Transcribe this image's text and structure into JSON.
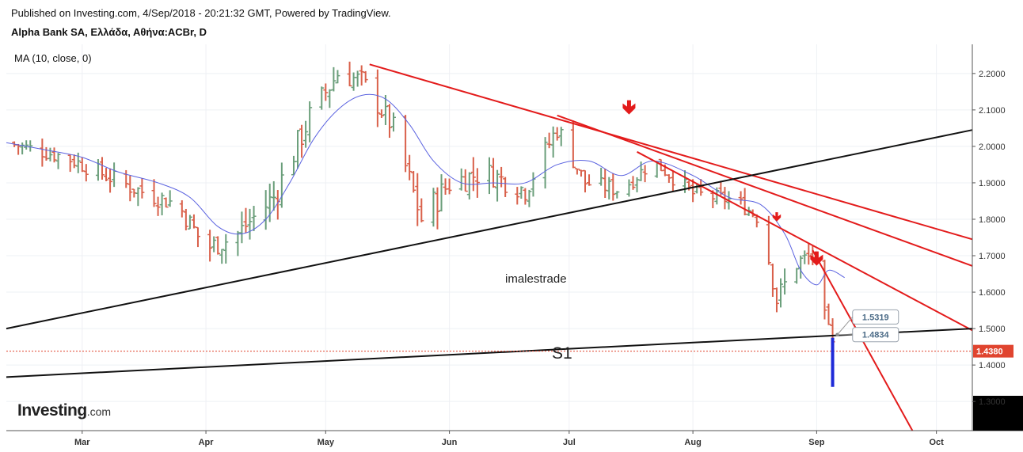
{
  "header": {
    "published": "Published on Investing.com, 4/Sep/2018 - 20:21:32 GMT, Powered by TradingView.",
    "symbol": "Alpha Bank SA, Ελλάδα, Αθήνα:ACBr, D"
  },
  "indicator_label": "MA (10, close, 0)",
  "logo": {
    "main": "Investing",
    "suffix": ".com"
  },
  "colors": {
    "up_bar": "#6a9e7a",
    "down_bar": "#d9604a",
    "ma_line": "#5b63e0",
    "trendline_red": "#e31b1b",
    "trendline_black": "#111111",
    "last_price": "#e0442f",
    "volume_marker": "#1e2ad8"
  },
  "chart_data": {
    "type": "ohlc",
    "title": "Alpha Bank SA, Ελλάδα, Αθήνα:ACBr, D",
    "y_axis": {
      "ticks": [
        "1.3000",
        "1.4000",
        "1.5000",
        "1.6000",
        "1.7000",
        "1.8000",
        "1.9000",
        "2.0000",
        "2.1000",
        "2.2000"
      ],
      "range": [
        1.22,
        2.28
      ],
      "position": "right"
    },
    "x_axis": {
      "labels": [
        "Mar",
        "Apr",
        "May",
        "Jun",
        "Jul",
        "Aug",
        "Sep",
        "Oct"
      ],
      "start": "2018-02-10",
      "end": "2018-10-10"
    },
    "last_price": {
      "value": 1.438,
      "label": "1.4380"
    },
    "price_labels": [
      {
        "value": 1.5319,
        "label": "1.5319"
      },
      {
        "value": 1.4834,
        "label": "1.4834"
      }
    ],
    "annotations": {
      "watermark": "imalestrade",
      "support_label": "S1"
    },
    "moving_average": {
      "name": "MA (10, close, 0)",
      "points": [
        [
          "2018-02-10",
          2.01
        ],
        [
          "2018-02-20",
          1.99
        ],
        [
          "2018-03-01",
          1.97
        ],
        [
          "2018-03-10",
          1.93
        ],
        [
          "2018-03-20",
          1.9
        ],
        [
          "2018-03-28",
          1.86
        ],
        [
          "2018-04-04",
          1.78
        ],
        [
          "2018-04-10",
          1.76
        ],
        [
          "2018-04-16",
          1.8
        ],
        [
          "2018-04-22",
          1.9
        ],
        [
          "2018-04-28",
          2.02
        ],
        [
          "2018-05-04",
          2.1
        ],
        [
          "2018-05-10",
          2.14
        ],
        [
          "2018-05-16",
          2.13
        ],
        [
          "2018-05-22",
          2.06
        ],
        [
          "2018-05-28",
          1.96
        ],
        [
          "2018-06-04",
          1.9
        ],
        [
          "2018-06-12",
          1.9
        ],
        [
          "2018-06-20",
          1.9
        ],
        [
          "2018-06-28",
          1.95
        ],
        [
          "2018-07-06",
          1.96
        ],
        [
          "2018-07-14",
          1.92
        ],
        [
          "2018-07-22",
          1.96
        ],
        [
          "2018-08-01",
          1.92
        ],
        [
          "2018-08-10",
          1.86
        ],
        [
          "2018-08-18",
          1.84
        ],
        [
          "2018-08-24",
          1.76
        ],
        [
          "2018-08-28",
          1.66
        ],
        [
          "2018-09-01",
          1.62
        ],
        [
          "2018-09-04",
          1.66
        ],
        [
          "2018-09-08",
          1.64
        ]
      ]
    },
    "ohlc_segments": [
      {
        "date": "2018-02-10",
        "close": 2.01,
        "noise": 0.025
      },
      {
        "date": "2018-02-25",
        "close": 1.97,
        "noise": 0.03
      },
      {
        "date": "2018-03-05",
        "close": 1.93,
        "noise": 0.03
      },
      {
        "date": "2018-03-15",
        "close": 1.88,
        "noise": 0.035
      },
      {
        "date": "2018-03-25",
        "close": 1.84,
        "noise": 0.035
      },
      {
        "date": "2018-04-01",
        "close": 1.72,
        "noise": 0.04
      },
      {
        "date": "2018-04-08",
        "close": 1.75,
        "noise": 0.04
      },
      {
        "date": "2018-04-18",
        "close": 1.86,
        "noise": 0.05
      },
      {
        "date": "2018-04-27",
        "close": 2.08,
        "noise": 0.05
      },
      {
        "date": "2018-05-04",
        "close": 2.2,
        "noise": 0.04
      },
      {
        "date": "2018-05-10",
        "close": 2.18,
        "noise": 0.04
      },
      {
        "date": "2018-05-18",
        "close": 2.05,
        "noise": 0.04
      },
      {
        "date": "2018-05-25",
        "close": 1.8,
        "noise": 0.05
      },
      {
        "date": "2018-06-01",
        "close": 1.9,
        "noise": 0.05
      },
      {
        "date": "2018-06-10",
        "close": 1.93,
        "noise": 0.04
      },
      {
        "date": "2018-06-20",
        "close": 1.88,
        "noise": 0.04
      },
      {
        "date": "2018-06-28",
        "close": 2.05,
        "noise": 0.04
      },
      {
        "date": "2018-07-05",
        "close": 1.9,
        "noise": 0.03
      },
      {
        "date": "2018-07-14",
        "close": 1.88,
        "noise": 0.03
      },
      {
        "date": "2018-07-22",
        "close": 1.96,
        "noise": 0.025
      },
      {
        "date": "2018-08-01",
        "close": 1.87,
        "noise": 0.03
      },
      {
        "date": "2018-08-12",
        "close": 1.85,
        "noise": 0.025
      },
      {
        "date": "2018-08-18",
        "close": 1.8,
        "noise": 0.03
      },
      {
        "date": "2018-08-22",
        "close": 1.58,
        "noise": 0.04
      },
      {
        "date": "2018-08-27",
        "close": 1.68,
        "noise": 0.04
      },
      {
        "date": "2018-08-31",
        "close": 1.7,
        "noise": 0.03
      },
      {
        "date": "2018-09-03",
        "close": 1.52,
        "noise": 0.04
      },
      {
        "date": "2018-09-05",
        "close": 1.45,
        "noise": 0.03
      }
    ],
    "trendlines": [
      {
        "color": "red",
        "from": [
          "2018-05-12",
          2.225
        ],
        "to": [
          "2018-10-10",
          1.745
        ]
      },
      {
        "color": "red",
        "from": [
          "2018-06-28",
          2.085
        ],
        "to": [
          "2018-10-10",
          1.672
        ]
      },
      {
        "color": "red",
        "from": [
          "2018-07-18",
          1.985
        ],
        "to": [
          "2018-10-10",
          1.495
        ]
      },
      {
        "color": "red",
        "from": [
          "2018-08-31",
          1.715
        ],
        "to": [
          "2018-09-25",
          1.22
        ]
      },
      {
        "color": "black",
        "from": [
          "2018-02-10",
          1.5
        ],
        "to": [
          "2018-10-10",
          2.045
        ]
      },
      {
        "color": "black",
        "from": [
          "2018-02-10",
          1.367
        ],
        "to": [
          "2018-10-10",
          1.5
        ]
      }
    ],
    "arrows": [
      {
        "date": "2018-07-16",
        "value": 2.105,
        "size": "large"
      },
      {
        "date": "2018-08-22",
        "value": 1.805,
        "size": "small"
      },
      {
        "date": "2018-09-01",
        "value": 1.69,
        "size": "large"
      }
    ]
  }
}
